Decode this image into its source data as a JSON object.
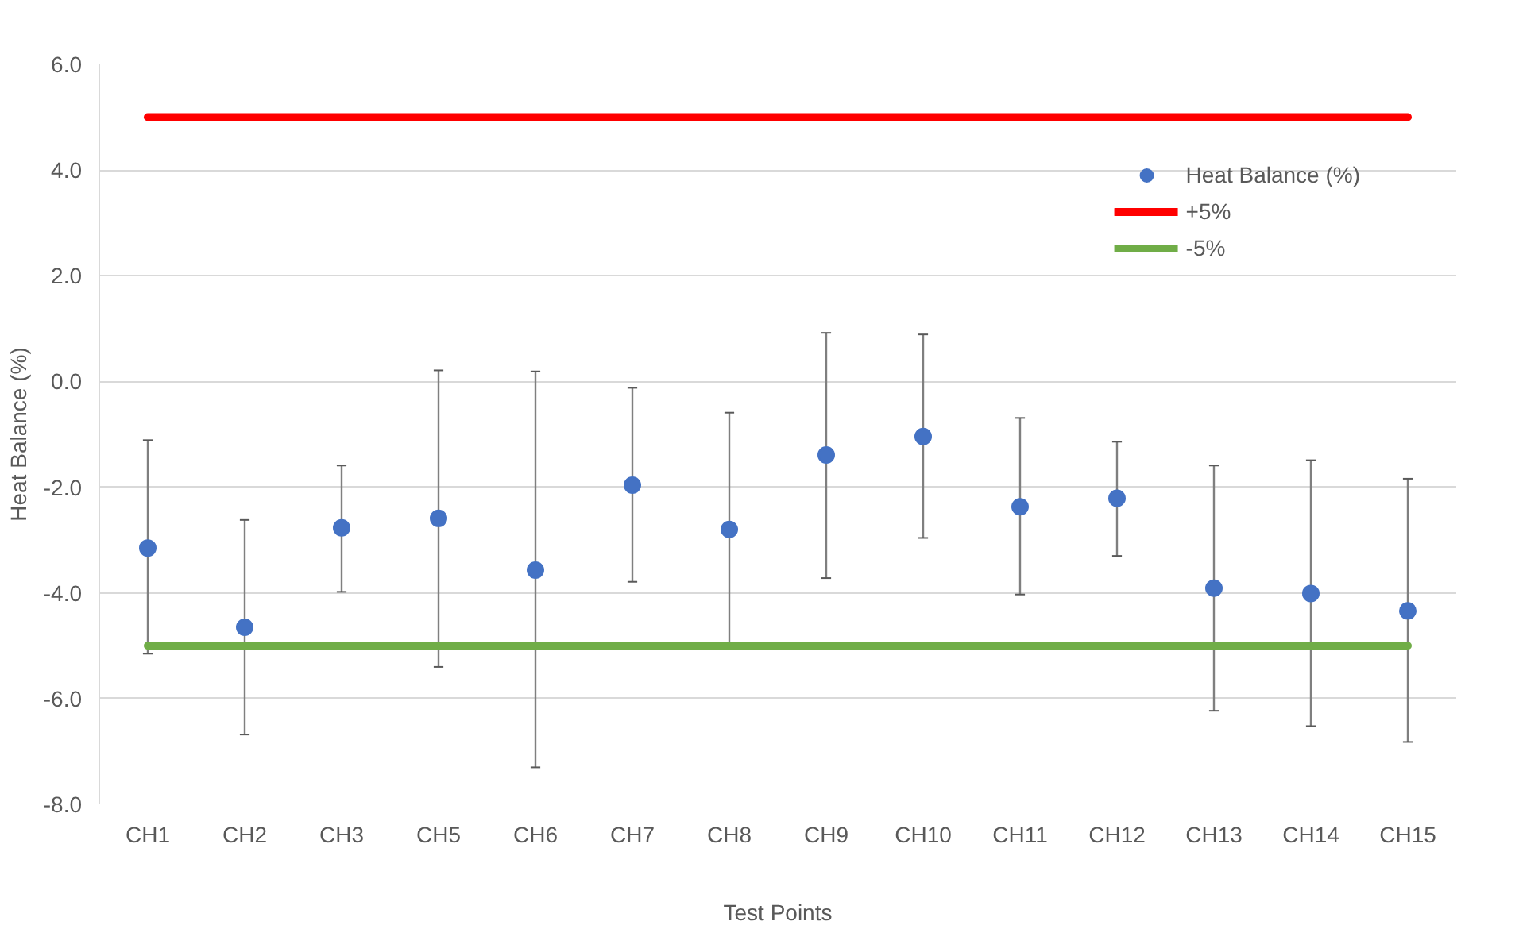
{
  "chart_data": {
    "type": "scatter",
    "xlabel": "Test Points",
    "ylabel": "Heat Balance (%)",
    "categories": [
      "CH1",
      "CH2",
      "CH3",
      "CH5",
      "CH6",
      "CH7",
      "CH8",
      "CH9",
      "CH10",
      "CH11",
      "CH12",
      "CH13",
      "CH14",
      "CH15"
    ],
    "series": [
      {
        "name": "Heat Balance (%)",
        "color": "#4472c4",
        "values": [
          -3.15,
          -4.65,
          -2.77,
          -2.59,
          -3.57,
          -1.96,
          -2.8,
          -1.39,
          -1.04,
          -2.37,
          -2.21,
          -3.91,
          -4.01,
          -4.34
        ],
        "errors": [
          [
            -5.15,
            -1.11
          ],
          [
            -6.68,
            -2.62
          ],
          [
            -3.98,
            -1.59
          ],
          [
            -5.4,
            0.21
          ],
          [
            -7.3,
            0.19
          ],
          [
            -3.79,
            -0.12
          ],
          [
            -5.0,
            -0.59
          ],
          [
            -3.72,
            0.92
          ],
          [
            -2.96,
            0.89
          ],
          [
            -4.03,
            -0.69
          ],
          [
            -3.3,
            -1.14
          ],
          [
            -6.23,
            -1.59
          ],
          [
            -6.52,
            -1.49
          ],
          [
            -6.82,
            -1.84
          ]
        ]
      }
    ],
    "ref_lines": [
      {
        "axis": "y",
        "value": 5,
        "label": "+5%",
        "color": "#ff0000"
      },
      {
        "axis": "y",
        "value": -5,
        "label": "-5%",
        "color": "#70ad47"
      }
    ],
    "ylim": [
      -8,
      6
    ],
    "yticks": [
      {
        "value": -8,
        "label": "-8.0"
      },
      {
        "value": -6,
        "label": "-6.0"
      },
      {
        "value": -4,
        "label": "-4.0"
      },
      {
        "value": -2,
        "label": "-2.0"
      },
      {
        "value": 0,
        "label": "0.0"
      },
      {
        "value": 2,
        "label": "2.0"
      },
      {
        "value": 4,
        "label": "4.0"
      },
      {
        "value": 6,
        "label": "6.0"
      }
    ],
    "grid": "y",
    "legend": "top right",
    "marker": "circle"
  }
}
